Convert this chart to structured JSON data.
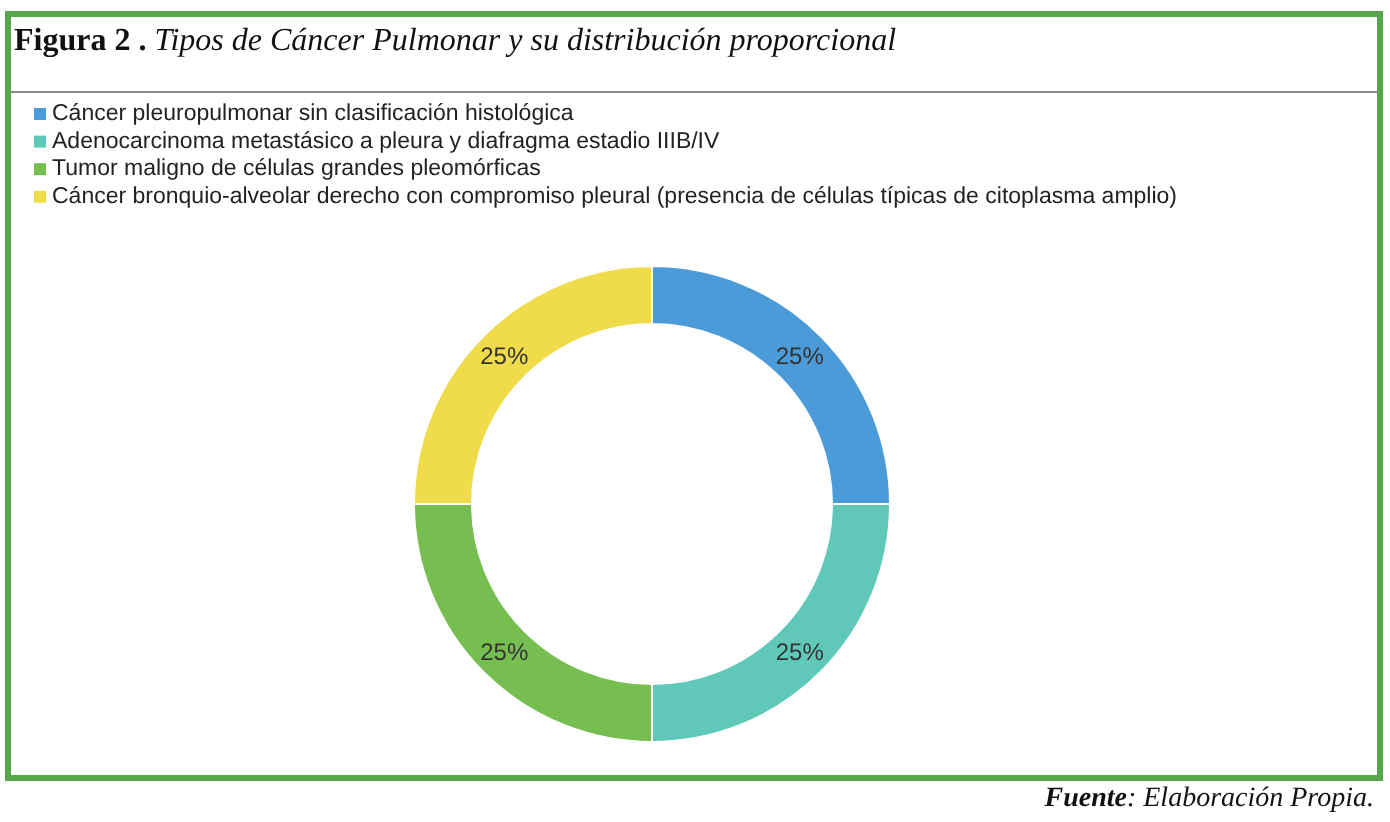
{
  "chart_data": {
    "type": "donut",
    "title": "Figura 2 . Tipos de Cáncer Pulmonar y su distribución proporcional",
    "categories": [
      "Cáncer pleuropulmonar sin clasificación histológica",
      "Adenocarcinoma metastásico a pleura y diafragma estadio IIIB/IV",
      "Tumor maligno de células grandes pleomórficas",
      "Cáncer bronquio-alveolar derecho con compromiso pleural (presencia de células típicas de citoplasma amplio)"
    ],
    "values": [
      25,
      25,
      25,
      25
    ],
    "colors": [
      "#4a9bd8",
      "#5fc8b9",
      "#76be4f",
      "#f0dc4b"
    ],
    "value_labels": [
      "25%",
      "25%",
      "25%",
      "25%"
    ],
    "legend": "top left",
    "annotations": [
      "Fuente: Elaboración Propia."
    ]
  }
}
